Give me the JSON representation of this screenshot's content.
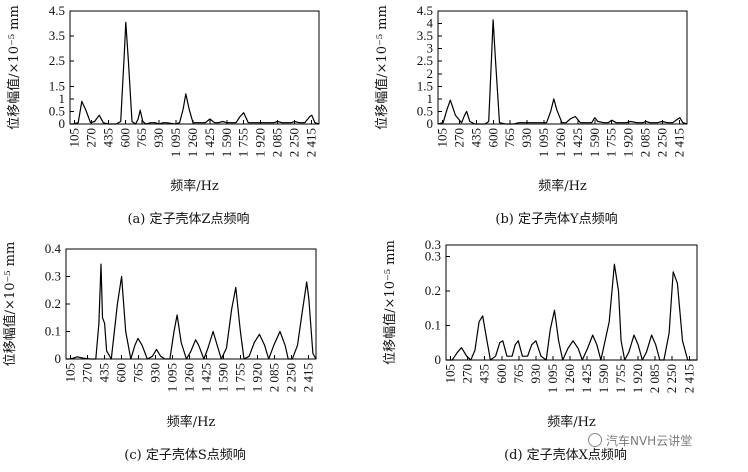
{
  "chart_data": [
    {
      "id": "z",
      "type": "line",
      "caption": "(a) 定子壳体Z点频响",
      "xlabel": "频率/Hz",
      "ylabel": "位移幅值/×10⁻⁵ mm",
      "ylim": [
        0,
        4.5
      ],
      "yticks": [
        "4.5",
        "3.5",
        "2.5",
        "1.5",
        "1",
        "0.5",
        "0"
      ],
      "ytick_values": [
        4.5,
        3.5,
        2.5,
        1.5,
        1,
        0.5,
        0
      ],
      "xticks": [
        "105",
        "270",
        "435",
        "600",
        "765",
        "930",
        "1 095",
        "1 260",
        "1 425",
        "1 590",
        "1 755",
        "1 920",
        "2 085",
        "2 250",
        "2 415"
      ],
      "xlim": [
        60,
        2490
      ],
      "x": [
        60,
        90,
        140,
        175,
        215,
        260,
        300,
        345,
        385,
        435,
        470,
        510,
        555,
        590,
        605,
        630,
        665,
        700,
        725,
        745,
        770,
        800,
        850,
        890,
        930,
        970,
        1000,
        1090,
        1130,
        1165,
        1190,
        1225,
        1260,
        1300,
        1340,
        1380,
        1425,
        1470,
        1510,
        1550,
        1590,
        1630,
        1680,
        1720,
        1755,
        1800,
        1850,
        1890,
        1920,
        1960,
        2000,
        2050,
        2085,
        2130,
        2180,
        2220,
        2250,
        2300,
        2350,
        2400,
        2420,
        2450,
        2490
      ],
      "y": [
        0,
        0,
        0.05,
        0.9,
        0.55,
        0.05,
        0.1,
        0.35,
        0.05,
        0,
        0,
        0,
        0.1,
        2.8,
        4.05,
        2.5,
        0.1,
        0,
        0.2,
        0.55,
        0.1,
        0,
        0.05,
        0.05,
        0,
        0.05,
        0.05,
        0,
        0.05,
        0.6,
        1.2,
        0.55,
        0.05,
        0.05,
        0.05,
        0.05,
        0.2,
        0.05,
        0.05,
        0.1,
        0.05,
        0.05,
        0.05,
        0.3,
        0.45,
        0.05,
        0.05,
        0.05,
        0.05,
        0.05,
        0.05,
        0.05,
        0.1,
        0.05,
        0.05,
        0.05,
        0.1,
        0.05,
        0.05,
        0.3,
        0.35,
        0.05,
        0
      ]
    },
    {
      "id": "y",
      "type": "line",
      "caption": "(b) 定子壳体Y点频响",
      "xlabel": "频率/Hz",
      "ylabel": "位移幅值/×10⁻⁵ mm",
      "ylim": [
        0,
        4.5
      ],
      "yticks": [
        "4.5",
        "4",
        "3.5",
        "3",
        "2.5",
        "2",
        "1.5",
        "1",
        "0.5",
        "0"
      ],
      "ytick_values": [
        4.5,
        4,
        3.5,
        3,
        2.5,
        2,
        1.5,
        1,
        0.5,
        0
      ],
      "xticks": [
        "105",
        "270",
        "435",
        "600",
        "765",
        "930",
        "1 095",
        "1 260",
        "1 425",
        "1 590",
        "1 755",
        "1 920",
        "2 085",
        "2 250",
        "2 415"
      ],
      "xlim": [
        60,
        2490
      ],
      "x": [
        60,
        110,
        150,
        180,
        230,
        290,
        320,
        340,
        370,
        420,
        470,
        520,
        555,
        585,
        598,
        620,
        660,
        720,
        800,
        850,
        880,
        920,
        960,
        1000,
        1060,
        1120,
        1160,
        1190,
        1220,
        1270,
        1310,
        1350,
        1400,
        1450,
        1500,
        1560,
        1590,
        1620,
        1680,
        1720,
        1755,
        1800,
        1860,
        1900,
        1940,
        2000,
        2060,
        2090,
        2130,
        2200,
        2250,
        2300,
        2350,
        2400,
        2420,
        2450,
        2490
      ],
      "y": [
        0,
        0.05,
        0.6,
        0.95,
        0.35,
        0.05,
        0.35,
        0.5,
        0.1,
        0,
        0,
        0,
        0.1,
        2.9,
        4.15,
        2.6,
        0.05,
        0,
        0,
        0.05,
        0.05,
        0.05,
        0.05,
        0.05,
        0.05,
        0.05,
        0.5,
        1.0,
        0.55,
        0.05,
        0.05,
        0.2,
        0.3,
        0.05,
        0.05,
        0.05,
        0.25,
        0.1,
        0.05,
        0.05,
        0.15,
        0.05,
        0.05,
        0.05,
        0.1,
        0.05,
        0.05,
        0.1,
        0.05,
        0.05,
        0.1,
        0.05,
        0.05,
        0.2,
        0.25,
        0.05,
        0
      ]
    },
    {
      "id": "s",
      "type": "line",
      "caption": "(c) 定子壳体S点频响",
      "xlabel": "频率/Hz",
      "ylabel": "位移幅值/×10⁻⁵ mm",
      "ylim": [
        0,
        0.4
      ],
      "yticks": [
        "0.4",
        "0.3",
        "0.2",
        "0.1",
        "0"
      ],
      "ytick_values": [
        0.4,
        0.3,
        0.2,
        0.1,
        0
      ],
      "xticks": [
        "105",
        "270",
        "435",
        "600",
        "765",
        "930",
        "1 095",
        "1 260",
        "1 425",
        "1 590",
        "1 755",
        "1 920",
        "2 085",
        "2 250",
        "2 415"
      ],
      "xlim": [
        60,
        2490
      ],
      "x": [
        60,
        90,
        130,
        170,
        230,
        300,
        350,
        380,
        400,
        415,
        435,
        455,
        500,
        560,
        600,
        640,
        690,
        730,
        760,
        800,
        850,
        900,
        940,
        980,
        1020,
        1070,
        1110,
        1140,
        1180,
        1230,
        1270,
        1320,
        1350,
        1400,
        1440,
        1490,
        1530,
        1570,
        1620,
        1670,
        1710,
        1755,
        1790,
        1840,
        1890,
        1940,
        1990,
        2030,
        2080,
        2140,
        2190,
        2220,
        2260,
        2310,
        2360,
        2400,
        2420,
        2460,
        2490
      ],
      "y": [
        0,
        0,
        0.003,
        0.008,
        0.003,
        0,
        0,
        0.13,
        0.345,
        0.15,
        0.13,
        0.03,
        0,
        0.2,
        0.3,
        0.1,
        0,
        0.05,
        0.075,
        0.05,
        0,
        0.01,
        0.035,
        0.01,
        0,
        0,
        0.1,
        0.16,
        0.06,
        0,
        0.025,
        0.07,
        0.05,
        0,
        0.04,
        0.1,
        0.05,
        0,
        0.04,
        0.18,
        0.26,
        0.1,
        0,
        0.01,
        0.06,
        0.09,
        0.05,
        0,
        0.05,
        0.1,
        0.05,
        0,
        0,
        0.05,
        0.18,
        0.28,
        0.22,
        0.02,
        0
      ]
    },
    {
      "id": "x",
      "type": "line",
      "caption": "(d) 定子壳体X点频响",
      "xlabel": "频率/Hz",
      "ylabel": "位移幅值/×10⁻⁵ mm",
      "ylim": [
        0,
        0.3
      ],
      "yticks": [
        "0.3",
        "0.3",
        "0.2",
        "0.1",
        "0"
      ],
      "ytick_values": [
        0.3,
        0.27,
        0.18,
        0.09,
        0
      ],
      "xticks": [
        "105",
        "270",
        "435",
        "600",
        "765",
        "930",
        "1 095",
        "1 260",
        "1 425",
        "1 590",
        "1 755",
        "1 920",
        "2 085",
        "2 250",
        "2 415"
      ],
      "xlim": [
        60,
        2490
      ],
      "x": [
        60,
        120,
        170,
        210,
        260,
        300,
        340,
        380,
        415,
        450,
        490,
        540,
        580,
        610,
        650,
        700,
        730,
        760,
        800,
        850,
        890,
        930,
        980,
        1030,
        1070,
        1110,
        1150,
        1190,
        1240,
        1290,
        1340,
        1380,
        1430,
        1480,
        1520,
        1560,
        1600,
        1640,
        1690,
        1730,
        1755,
        1790,
        1830,
        1880,
        1920,
        1960,
        2000,
        2050,
        2090,
        2130,
        2170,
        2220,
        2260,
        2300,
        2350,
        2400,
        2420,
        2460,
        2490
      ],
      "y": [
        0,
        0,
        0.02,
        0.032,
        0.01,
        0,
        0.025,
        0.1,
        0.115,
        0.06,
        0,
        0.01,
        0.045,
        0.05,
        0.01,
        0.01,
        0.04,
        0.05,
        0.01,
        0.01,
        0.04,
        0.05,
        0.01,
        0,
        0.08,
        0.13,
        0.05,
        0,
        0.03,
        0.05,
        0.03,
        0,
        0.03,
        0.065,
        0.04,
        0,
        0.05,
        0.1,
        0.25,
        0.18,
        0.05,
        0,
        0.02,
        0.065,
        0.04,
        0,
        0.02,
        0.065,
        0.04,
        0,
        0,
        0.07,
        0.23,
        0.2,
        0.05,
        0,
        0,
        0,
        0
      ]
    }
  ],
  "watermark": {
    "text": "汽车NVH云讲堂"
  }
}
